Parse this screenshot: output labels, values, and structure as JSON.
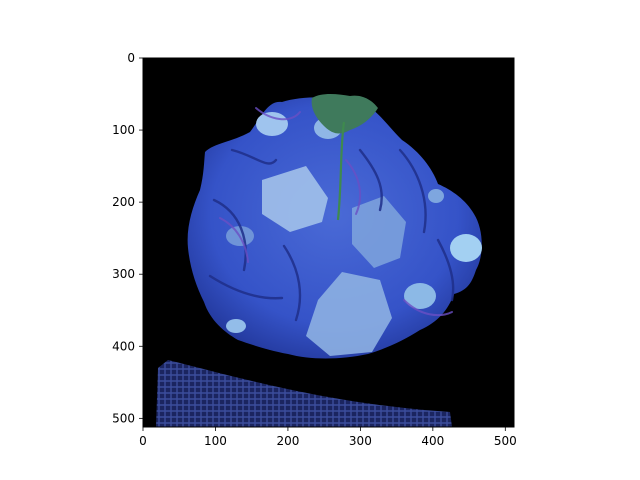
{
  "chart_data": {
    "type": "image",
    "title": "",
    "xlabel": "",
    "ylabel": "",
    "xlim": [
      0,
      512
    ],
    "ylim": [
      512,
      0
    ],
    "x_ticks": [
      0,
      100,
      200,
      300,
      400,
      500
    ],
    "y_ticks": [
      0,
      100,
      200,
      300,
      400,
      500
    ],
    "grid": false,
    "image": {
      "subject": "blue-tinted pile of sliced vegetables with a green leaf on top, on a black background, with a dark blue woven placemat edge at the bottom",
      "colors": {
        "background": "#000000",
        "food_main": "#3553c8",
        "food_light": "#8fb6e6",
        "food_dark": "#1c2f8c",
        "leaf": "#3f7a5c",
        "mat": "#1e2a6e"
      }
    }
  }
}
